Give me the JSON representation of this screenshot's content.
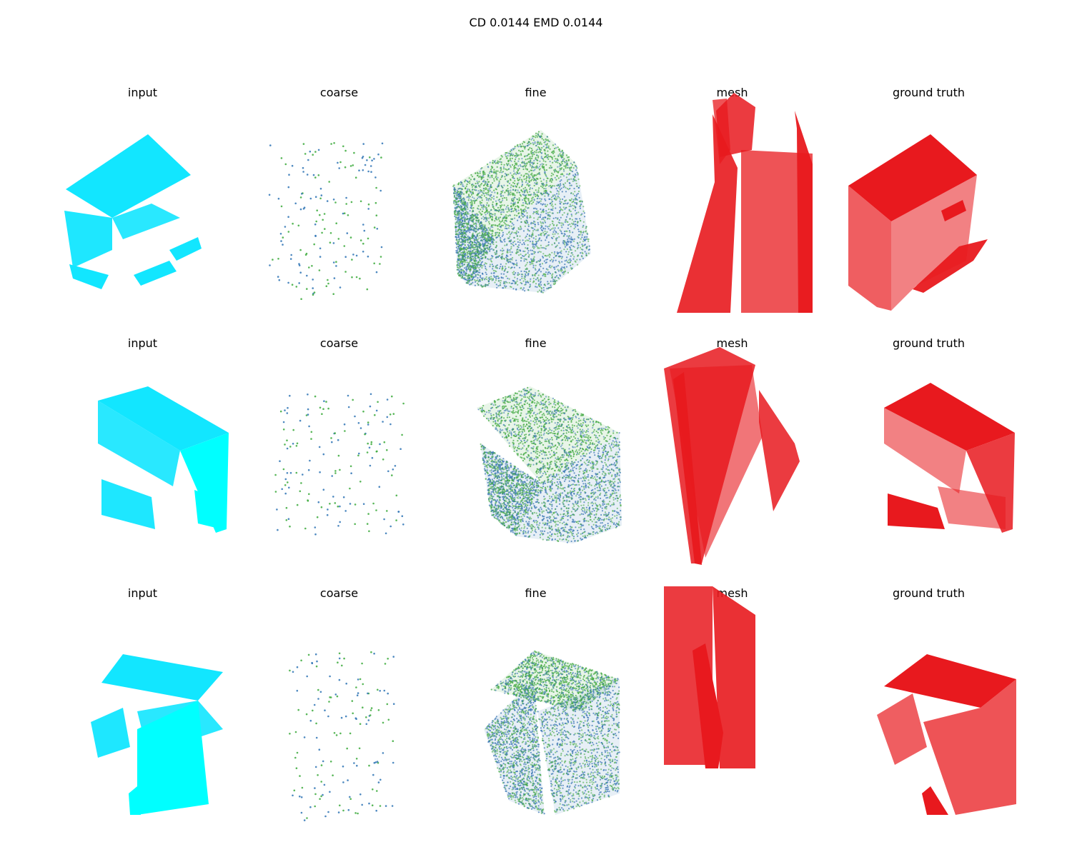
{
  "figure": {
    "title": "CD 0.0144  EMD 0.0144",
    "rows": [
      {
        "panels": [
          {
            "title": "input",
            "kind": "input"
          },
          {
            "title": "coarse",
            "kind": "coarse"
          },
          {
            "title": "fine",
            "kind": "fine"
          },
          {
            "title": "mesh",
            "kind": "mesh"
          },
          {
            "title": "ground truth",
            "kind": "gt"
          }
        ]
      },
      {
        "panels": [
          {
            "title": "input",
            "kind": "input"
          },
          {
            "title": "coarse",
            "kind": "coarse"
          },
          {
            "title": "fine",
            "kind": "fine"
          },
          {
            "title": "mesh",
            "kind": "mesh"
          },
          {
            "title": "ground truth",
            "kind": "gt"
          }
        ]
      },
      {
        "panels": [
          {
            "title": "input",
            "kind": "input"
          },
          {
            "title": "coarse",
            "kind": "coarse"
          },
          {
            "title": "fine",
            "kind": "fine"
          },
          {
            "title": "mesh",
            "kind": "mesh"
          },
          {
            "title": "ground truth",
            "kind": "gt"
          }
        ]
      }
    ]
  },
  "colors": {
    "input_light": "#12e6ff",
    "input_dark": "#00ffff",
    "coarse_blue": "#2f74b5",
    "coarse_green": "#3caa3c",
    "fine_blue": "#3c78b4",
    "fine_green": "#44aa44",
    "mesh_red": "#e8191e",
    "gt_red": "#e8191e"
  }
}
